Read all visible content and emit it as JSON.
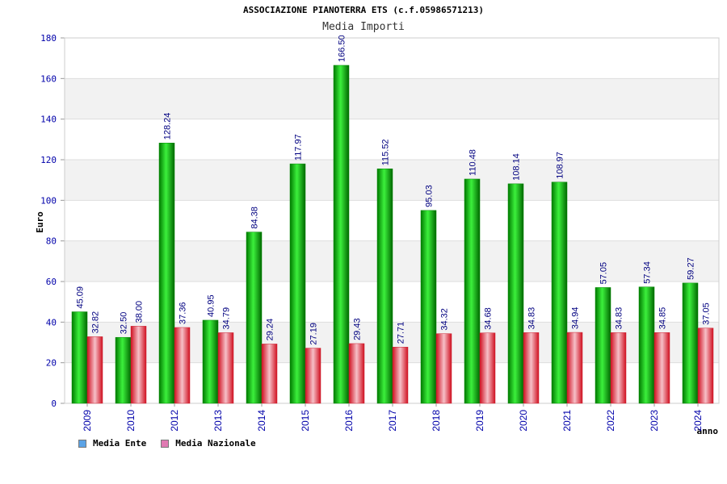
{
  "title": "ASSOCIAZIONE PIANOTERRA ETS (c.f.05986571213)",
  "subtitle": "Media Importi",
  "legend": {
    "ente": {
      "label": "Media Ente",
      "color": "#5ba3e6"
    },
    "nazionale": {
      "label": "Media Nazionale",
      "color": "#e07ab2"
    }
  },
  "chart_data": {
    "type": "bar",
    "title": "Media Importi",
    "xlabel": "anno",
    "ylabel": "Euro",
    "ylim": [
      0,
      180
    ],
    "yticks": [
      0,
      20,
      40,
      60,
      80,
      100,
      120,
      140,
      160,
      180
    ],
    "grid": true,
    "legend_position": "bottom-left",
    "categories": [
      "2009",
      "2010",
      "2012",
      "2013",
      "2014",
      "2015",
      "2016",
      "2017",
      "2018",
      "2019",
      "2020",
      "2021",
      "2022",
      "2023",
      "2024"
    ],
    "series": [
      {
        "name": "Media Ente",
        "color": "#00b000",
        "values": [
          45.09,
          32.5,
          128.24,
          40.95,
          84.38,
          117.97,
          166.5,
          115.52,
          95.03,
          110.48,
          108.14,
          108.97,
          57.05,
          57.34,
          59.27
        ],
        "labels": [
          "45.09",
          "32.50",
          "128.24",
          "40.95",
          "84.38",
          "117.97",
          "166.50",
          "115.52",
          "95.03",
          "110.48",
          "108.14",
          "108.97",
          "57.05",
          "57.34",
          "59.27"
        ]
      },
      {
        "name": "Media Nazionale",
        "color": "#e0202f",
        "values": [
          32.82,
          38.0,
          37.36,
          34.79,
          29.24,
          27.19,
          29.43,
          27.71,
          34.32,
          34.68,
          34.83,
          34.94,
          34.83,
          34.85,
          37.05
        ],
        "labels": [
          "32.82",
          "38.00",
          "37.36",
          "34.79",
          "29.24",
          "27.19",
          "29.43",
          "27.71",
          "34.32",
          "34.68",
          "34.83",
          "34.94",
          "34.83",
          "34.85",
          "37.05"
        ]
      }
    ]
  }
}
